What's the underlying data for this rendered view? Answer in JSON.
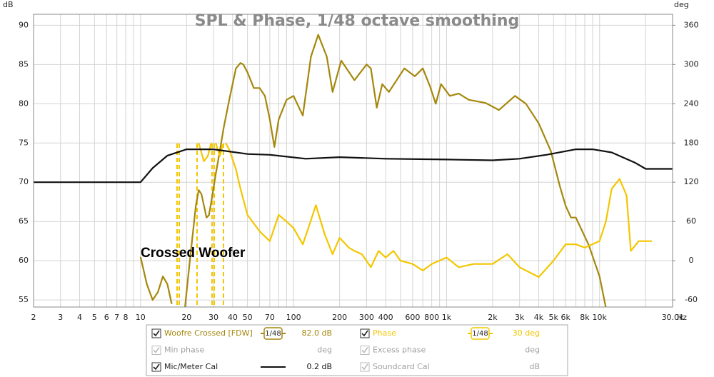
{
  "chart_data": {
    "type": "line",
    "title": "SPL & Phase, 1/48 octave smoothing",
    "y_label": "dB",
    "y2_label": "deg",
    "x_label": "Hz",
    "annotation": "Crossed Woofer",
    "log_x": true,
    "grid": true,
    "xlim": [
      2,
      30000
    ],
    "xticks": [
      2,
      3,
      4,
      5,
      6,
      7,
      8,
      10,
      20,
      30,
      40,
      50,
      70,
      100,
      200,
      300,
      400,
      600,
      800,
      {
        "value": 1000,
        "label": "1k"
      },
      {
        "value": 2000,
        "label": "2k"
      },
      {
        "value": 3000,
        "label": "3k"
      },
      {
        "value": 4000,
        "label": "4k"
      },
      {
        "value": 5000,
        "label": "5k"
      },
      {
        "value": 6000,
        "label": "6k"
      },
      {
        "value": 8000,
        "label": "8k"
      },
      {
        "value": 10000,
        "label": "10k"
      },
      {
        "value": 30000,
        "label": "30.0k"
      }
    ],
    "xminor": [
      9,
      60,
      80,
      90,
      500,
      700,
      900,
      7000,
      9000,
      20000
    ],
    "ylim": [
      54.1,
      91.4
    ],
    "yticks": [
      55,
      60,
      65,
      70,
      75,
      80,
      85,
      90
    ],
    "y2lim": [
      -70.8,
      376.8
    ],
    "y2ticks": [
      -60,
      0,
      60,
      120,
      180,
      240,
      300,
      360
    ],
    "series": [
      {
        "name": "Woofre Crossed [FDW]",
        "color": "#a5870c",
        "x": [
          10,
          11,
          12,
          13,
          14,
          15,
          16,
          17,
          19.5,
          21,
          23,
          24,
          25,
          26,
          27,
          28,
          29,
          31,
          33,
          35,
          38,
          42,
          45,
          47,
          50,
          55,
          60,
          65,
          70,
          75,
          80,
          90,
          100,
          115,
          130,
          145,
          165,
          180,
          205,
          250,
          300,
          320,
          350,
          380,
          420,
          530,
          620,
          700,
          780,
          850,
          920,
          1050,
          1200,
          1400,
          1800,
          2200,
          2800,
          3300,
          4000,
          4800,
          5500,
          6000,
          6500,
          7000,
          8500,
          10000,
          11000
        ],
        "values": [
          60.5,
          57,
          55,
          56,
          58,
          57,
          54.5,
          null,
          54,
          60,
          67,
          69,
          68.5,
          67,
          65.5,
          65.8,
          67.5,
          71,
          74,
          77,
          80.5,
          84.5,
          85.2,
          85,
          84,
          82,
          82,
          81,
          78,
          74.5,
          78,
          80.5,
          81,
          78.5,
          86,
          88.8,
          86,
          81.5,
          85.5,
          83,
          85,
          84.5,
          79.5,
          82.5,
          81.5,
          84.5,
          83.5,
          84.5,
          82.2,
          80,
          82.5,
          81,
          81.3,
          80.5,
          80.1,
          79.2,
          81,
          80,
          77.5,
          74,
          69.5,
          67,
          65.5,
          65.5,
          62,
          58,
          54
        ]
      },
      {
        "name": "Phase",
        "color": "#f3c600",
        "axis": "y2",
        "x": [
          24,
          25,
          26,
          27.5,
          29,
          30,
          31,
          33,
          34.5,
          35.5,
          36,
          38,
          42,
          45,
          50,
          60,
          70,
          80,
          90,
          100,
          115,
          125,
          140,
          160,
          180,
          200,
          230,
          250,
          280,
          320,
          360,
          400,
          450,
          500,
          600,
          700,
          800,
          1000,
          1200,
          1500,
          2000,
          2500,
          3000,
          4000,
          5000,
          6000,
          7000,
          8000,
          10000,
          11000,
          12000,
          13500,
          15000,
          16000,
          18000,
          22000
        ],
        "values": [
          180,
          165,
          152,
          160,
          180,
          null,
          180,
          160,
          178,
          null,
          180,
          170,
          140,
          110,
          70,
          45,
          30,
          70,
          60,
          50,
          25,
          50,
          85,
          40,
          10,
          35,
          20,
          15,
          10,
          -10,
          15,
          5,
          15,
          0,
          -5,
          -15,
          -5,
          5,
          -10,
          -5,
          -5,
          10,
          -10,
          -25,
          0,
          25,
          25,
          20,
          30,
          60,
          110,
          125,
          100,
          15,
          30,
          30
        ]
      },
      {
        "name": "Mic/Meter Cal",
        "color": "#111111",
        "x": [
          2,
          5,
          10,
          12,
          15,
          20,
          30,
          50,
          70,
          120,
          200,
          400,
          1000,
          2000,
          3000,
          4500,
          7000,
          9000,
          12000,
          17000,
          20000,
          30000
        ],
        "values": [
          70,
          70,
          70,
          71.8,
          73.4,
          74.2,
          74.2,
          73.6,
          73.5,
          73,
          73.2,
          73,
          72.9,
          72.8,
          73,
          73.5,
          74.2,
          74.2,
          73.8,
          72.5,
          71.7,
          71.7
        ]
      }
    ],
    "legend": [
      {
        "name": "Woofre Crossed [FDW]",
        "checked": true,
        "enabled": true,
        "smoothing": "1/48",
        "value": "82.0 dB"
      },
      {
        "name": "Phase",
        "checked": true,
        "enabled": true,
        "smoothing": "1/48",
        "value": "30 deg"
      },
      {
        "name": "Min phase",
        "checked": true,
        "enabled": false,
        "value": "deg"
      },
      {
        "name": "Excess phase",
        "checked": true,
        "enabled": false,
        "value": "deg"
      },
      {
        "name": "Mic/Meter Cal",
        "checked": true,
        "enabled": true,
        "value": "0.2 dB"
      },
      {
        "name": "Soundcard Cal",
        "checked": true,
        "enabled": false,
        "value": "dB"
      }
    ]
  }
}
